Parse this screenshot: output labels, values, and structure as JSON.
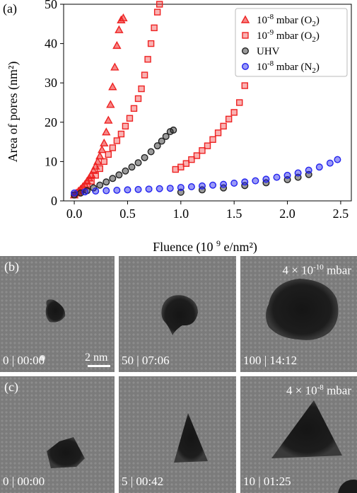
{
  "panel_a": {
    "letter": "(a)",
    "chart_data": {
      "type": "scatter",
      "xlabel": "Fluence (10^9 e/nm²)",
      "ylabel": "Area of pores (nm²)",
      "xlim": [
        -0.1,
        2.6
      ],
      "ylim": [
        0,
        50
      ],
      "xticks": [
        "0.0",
        "0.5",
        "1.0",
        "1.5",
        "2.0",
        "2.5"
      ],
      "xtick_values": [
        0,
        0.5,
        1.0,
        1.5,
        2.0,
        2.5
      ],
      "yticks": [
        "0",
        "10",
        "20",
        "30",
        "40",
        "50"
      ],
      "ytick_values": [
        0,
        10,
        20,
        30,
        40,
        50
      ],
      "legend_placement": "top-right",
      "series": [
        {
          "name": "10^-8 mbar (O2)",
          "color": "#ee2222",
          "marker": "triangle",
          "x": [
            0.0,
            0.02,
            0.04,
            0.06,
            0.08,
            0.1,
            0.12,
            0.14,
            0.16,
            0.18,
            0.2,
            0.22,
            0.24,
            0.26,
            0.28,
            0.3,
            0.32,
            0.34,
            0.36,
            0.38,
            0.4,
            0.42,
            0.44,
            0.46
          ],
          "y": [
            1.5,
            2.0,
            2.5,
            3.0,
            3.6,
            4.2,
            5.0,
            5.8,
            6.7,
            7.7,
            8.8,
            10.0,
            11.4,
            13.0,
            14.7,
            17.5,
            20.5,
            24.5,
            29.0,
            34.0,
            39.5,
            43.5,
            46.0,
            46.5
          ]
        },
        {
          "name": "10^-9 mbar (O2)",
          "color": "#ee2222",
          "marker": "square",
          "x": [
            0.0,
            0.04,
            0.08,
            0.12,
            0.16,
            0.2,
            0.24,
            0.28,
            0.32,
            0.36,
            0.4,
            0.44,
            0.48,
            0.52,
            0.56,
            0.6,
            0.63,
            0.66,
            0.69,
            0.72,
            0.75,
            0.78,
            0.8
          ],
          "y": [
            1.5,
            2.0,
            2.8,
            3.8,
            5.0,
            6.5,
            8.2,
            10.0,
            11.8,
            13.5,
            15.3,
            17.0,
            19.0,
            21.0,
            23.5,
            26.0,
            28.5,
            32.0,
            36.0,
            40.0,
            44.0,
            48.0,
            50.0
          ]
        },
        {
          "name": "UHV",
          "color": "#222222",
          "marker": "circle",
          "x": [
            0.0,
            0.06,
            0.12,
            0.18,
            0.24,
            0.3,
            0.36,
            0.42,
            0.48,
            0.54,
            0.6,
            0.66,
            0.72,
            0.78,
            0.82,
            0.86,
            0.9,
            0.93,
            1.0,
            1.2,
            1.4,
            1.6,
            1.8,
            2.0,
            2.1,
            2.2
          ],
          "y": [
            1.5,
            2.0,
            2.6,
            3.3,
            4.0,
            4.8,
            5.7,
            6.6,
            7.6,
            8.6,
            9.7,
            11.0,
            12.5,
            14.0,
            15.2,
            16.4,
            17.6,
            18.0,
            2.2,
            2.8,
            3.3,
            3.9,
            4.6,
            5.4,
            6.0,
            6.7
          ]
        },
        {
          "name": "10^-8 mbar (N2)",
          "color": "#2222ee",
          "marker": "circle",
          "x": [
            0.0,
            0.1,
            0.2,
            0.3,
            0.4,
            0.5,
            0.6,
            0.7,
            0.8,
            0.9,
            1.0,
            1.1,
            1.2,
            1.3,
            1.4,
            1.5,
            1.6,
            1.7,
            1.8,
            1.9,
            2.0,
            2.1,
            2.2,
            2.3,
            2.4,
            2.47
          ],
          "y": [
            2.0,
            2.3,
            2.5,
            2.6,
            2.7,
            2.8,
            2.9,
            3.0,
            3.1,
            3.2,
            3.4,
            3.6,
            3.8,
            4.0,
            4.2,
            4.5,
            4.8,
            5.1,
            5.5,
            6.0,
            6.5,
            7.1,
            7.8,
            8.6,
            9.6,
            10.5
          ]
        },
        {
          "name": "",
          "color": "#ee2222",
          "marker": "square",
          "x": [
            0.95,
            1.0,
            1.05,
            1.1,
            1.15,
            1.2,
            1.25,
            1.3,
            1.35,
            1.4,
            1.45,
            1.5,
            1.55,
            1.6
          ],
          "y": [
            8.0,
            8.6,
            9.5,
            10.5,
            11.5,
            12.8,
            14.0,
            15.6,
            17.3,
            19.0,
            20.8,
            22.5,
            25.0,
            29.3
          ]
        }
      ],
      "legend": [
        {
          "label_main": "10",
          "label_sup": "-8",
          "label_rest": " mbar (O",
          "label_sub": "2",
          "label_end": ")",
          "marker": "triangle",
          "color": "#ee2222"
        },
        {
          "label_main": "10",
          "label_sup": "-9",
          "label_rest": " mbar (O",
          "label_sub": "2",
          "label_end": ")",
          "marker": "square",
          "color": "#ee2222"
        },
        {
          "label_main": "UHV",
          "label_sup": "",
          "label_rest": "",
          "label_sub": "",
          "label_end": "",
          "marker": "circle",
          "color": "#222222"
        },
        {
          "label_main": "10",
          "label_sup": "-8",
          "label_rest": " mbar (N",
          "label_sub": "2",
          "label_end": ")",
          "marker": "circle",
          "color": "#2222ee"
        }
      ]
    }
  },
  "panel_b": {
    "letter": "(b)",
    "pressure": "4 × 10",
    "pressure_exp": "-10",
    "pressure_unit": " mbar",
    "scalebar": "2 nm",
    "frames": [
      {
        "label": "0 | 00:00"
      },
      {
        "label": "50 | 07:06"
      },
      {
        "label": "100 | 14:12"
      }
    ]
  },
  "panel_c": {
    "letter": "(c)",
    "pressure": "4 × 10",
    "pressure_exp": "-8",
    "pressure_unit": " mbar",
    "frames": [
      {
        "label": "0 | 00:00"
      },
      {
        "label": "5 | 00:42"
      },
      {
        "label": "10 | 01:25"
      }
    ]
  }
}
